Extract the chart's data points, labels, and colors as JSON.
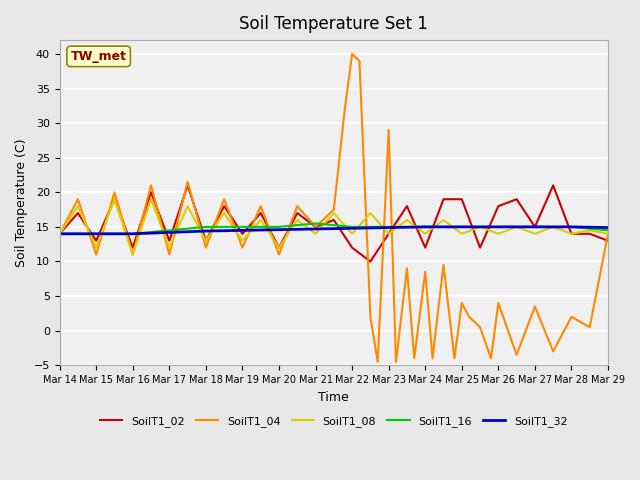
{
  "title": "Soil Temperature Set 1",
  "xlabel": "Time",
  "ylabel": "Soil Temperature (C)",
  "ylim": [
    -5,
    42
  ],
  "xlim": [
    0,
    15
  ],
  "bg_color": "#e8e8e8",
  "plot_bg_color": "#f0f0f0",
  "grid_color": "#ffffff",
  "annotation_text": "TW_met",
  "annotation_bg": "#ffffcc",
  "annotation_border": "#888800",
  "annotation_text_color": "#8b0000",
  "xtick_labels": [
    "Mar 14",
    "Mar 15",
    "Mar 16",
    "Mar 17",
    "Mar 18",
    "Mar 19",
    "Mar 20",
    "Mar 21",
    "Mar 22",
    "Mar 23",
    "Mar 24",
    "Mar 25",
    "Mar 26",
    "Mar 27",
    "Mar 28",
    "Mar 29"
  ],
  "series": {
    "SoilT1_02": {
      "color": "#cc0000",
      "lw": 1.5,
      "x": [
        0,
        0.5,
        1,
        1.5,
        2,
        2.5,
        3,
        3.5,
        4,
        4.5,
        5,
        5.5,
        6,
        6.5,
        7,
        7.5,
        8,
        8.5,
        9,
        9.5,
        10,
        10.5,
        11,
        11.5,
        12,
        12.5,
        13,
        13.5,
        14,
        14.5,
        15
      ],
      "y": [
        14,
        17,
        13,
        19,
        12,
        20,
        13,
        21,
        13,
        18,
        14,
        17,
        12,
        17,
        15,
        16,
        12,
        10,
        14,
        18,
        12,
        19,
        19,
        12,
        18,
        19,
        15,
        21,
        14,
        14,
        13
      ]
    },
    "SoilT1_04": {
      "color": "#ff8800",
      "lw": 1.5,
      "x": [
        0,
        0.5,
        1,
        1.5,
        2,
        2.5,
        3,
        3.5,
        4,
        4.5,
        5,
        5.5,
        6,
        6.5,
        7,
        7.5,
        7.8,
        8.0,
        8.2,
        8.5,
        8.7,
        9.0,
        9.2,
        9.5,
        9.7,
        10.0,
        10.2,
        10.5,
        10.8,
        11.0,
        11.2,
        11.5,
        11.8,
        12.0,
        12.5,
        13.0,
        13.5,
        14.0,
        14.5,
        15.0
      ],
      "y": [
        14,
        19,
        11,
        20,
        11,
        21,
        11,
        21.5,
        12,
        19,
        12,
        18,
        11,
        18,
        15,
        17.5,
        32,
        40,
        39,
        2,
        -4.5,
        29,
        -4.5,
        9,
        -4,
        8.5,
        -4,
        9.5,
        -4,
        4,
        2,
        0.5,
        -4,
        4,
        -3.5,
        3.5,
        -3,
        2,
        0.5,
        14
      ]
    },
    "SoilT1_08": {
      "color": "#ddcc00",
      "lw": 1.5,
      "x": [
        0,
        0.5,
        1,
        1.5,
        2,
        2.5,
        3,
        3.5,
        4,
        4.5,
        5,
        5.5,
        6,
        6.5,
        7,
        7.5,
        8,
        8.5,
        9,
        9.5,
        10,
        10.5,
        11,
        11.5,
        12,
        12.5,
        13,
        13.5,
        14,
        14.5,
        15
      ],
      "y": [
        14,
        18,
        12,
        19,
        11,
        19,
        12,
        18,
        13,
        17,
        13,
        16,
        12,
        16,
        14,
        17,
        14,
        17,
        14,
        16,
        14,
        16,
        14,
        15,
        14,
        15,
        14,
        15,
        14,
        14.5,
        14
      ]
    },
    "SoilT1_16": {
      "color": "#00cc00",
      "lw": 1.5,
      "x": [
        0,
        1,
        2,
        3,
        4,
        5,
        6,
        7,
        8,
        9,
        10,
        11,
        12,
        13,
        14,
        15
      ],
      "y": [
        14,
        14,
        14,
        14.5,
        15,
        15,
        15,
        15.5,
        15,
        15,
        15,
        15,
        15,
        15,
        15,
        14.5
      ]
    },
    "SoilT1_32": {
      "color": "#0000cc",
      "lw": 2.0,
      "x": [
        0,
        1,
        2,
        3,
        4,
        5,
        6,
        7,
        8,
        9,
        10,
        11,
        12,
        13,
        14,
        15
      ],
      "y": [
        14,
        14,
        14,
        14.2,
        14.4,
        14.5,
        14.6,
        14.7,
        14.8,
        14.9,
        15,
        15,
        15,
        15,
        15,
        14.9
      ]
    }
  }
}
